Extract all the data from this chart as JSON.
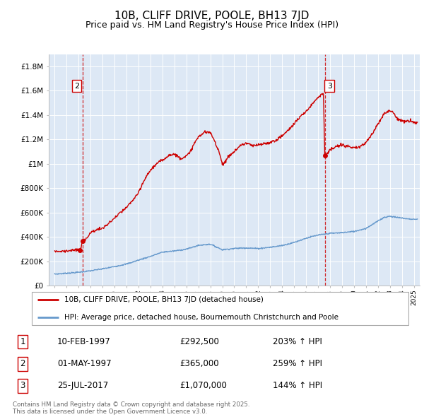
{
  "title": "10B, CLIFF DRIVE, POOLE, BH13 7JD",
  "subtitle": "Price paid vs. HM Land Registry's House Price Index (HPI)",
  "legend_line1": "10B, CLIFF DRIVE, POOLE, BH13 7JD (detached house)",
  "legend_line2": "HPI: Average price, detached house, Bournemouth Christchurch and Poole",
  "footnote": "Contains HM Land Registry data © Crown copyright and database right 2025.\nThis data is licensed under the Open Government Licence v3.0.",
  "sales": [
    {
      "num": 1,
      "date": "10-FEB-1997",
      "date_x": 1997.11,
      "price": 292500,
      "pct": "203% ↑ HPI"
    },
    {
      "num": 2,
      "date": "01-MAY-1997",
      "date_x": 1997.33,
      "price": 365000,
      "pct": "259% ↑ HPI"
    },
    {
      "num": 3,
      "date": "25-JUL-2017",
      "date_x": 2017.56,
      "price": 1070000,
      "pct": "144% ↑ HPI"
    }
  ],
  "vline2_x": 1997.33,
  "vline3_x": 2017.56,
  "ylim": [
    0,
    1900000
  ],
  "xlim": [
    1994.5,
    2025.5
  ],
  "yticks": [
    0,
    200000,
    400000,
    600000,
    800000,
    1000000,
    1200000,
    1400000,
    1600000,
    1800000
  ],
  "ytick_labels": [
    "£0",
    "£200K",
    "£400K",
    "£600K",
    "£800K",
    "£1M",
    "£1.2M",
    "£1.4M",
    "£1.6M",
    "£1.8M"
  ],
  "red_color": "#cc0000",
  "blue_color": "#6699cc",
  "plot_bg": "#dde8f5",
  "grid_color": "#ffffff",
  "hpi_key": [
    [
      1995.0,
      95000
    ],
    [
      1995.5,
      98000
    ],
    [
      1996.0,
      102000
    ],
    [
      1996.5,
      106000
    ],
    [
      1997.0,
      110000
    ],
    [
      1997.5,
      116000
    ],
    [
      1998.0,
      122000
    ],
    [
      1998.5,
      130000
    ],
    [
      1999.0,
      138000
    ],
    [
      1999.5,
      147000
    ],
    [
      2000.0,
      157000
    ],
    [
      2000.5,
      167000
    ],
    [
      2001.0,
      178000
    ],
    [
      2001.5,
      193000
    ],
    [
      2002.0,
      210000
    ],
    [
      2002.5,
      225000
    ],
    [
      2003.0,
      240000
    ],
    [
      2003.5,
      258000
    ],
    [
      2004.0,
      275000
    ],
    [
      2004.5,
      280000
    ],
    [
      2005.0,
      285000
    ],
    [
      2005.5,
      292000
    ],
    [
      2006.0,
      300000
    ],
    [
      2006.5,
      315000
    ],
    [
      2007.0,
      330000
    ],
    [
      2007.5,
      336000
    ],
    [
      2008.0,
      340000
    ],
    [
      2008.5,
      318000
    ],
    [
      2009.0,
      295000
    ],
    [
      2009.5,
      300000
    ],
    [
      2010.0,
      305000
    ],
    [
      2010.5,
      308000
    ],
    [
      2011.0,
      310000
    ],
    [
      2011.5,
      307000
    ],
    [
      2012.0,
      305000
    ],
    [
      2012.5,
      310000
    ],
    [
      2013.0,
      315000
    ],
    [
      2013.5,
      322000
    ],
    [
      2014.0,
      330000
    ],
    [
      2014.5,
      342000
    ],
    [
      2015.0,
      355000
    ],
    [
      2015.5,
      372000
    ],
    [
      2016.0,
      390000
    ],
    [
      2016.5,
      403000
    ],
    [
      2017.0,
      415000
    ],
    [
      2017.5,
      422000
    ],
    [
      2018.0,
      430000
    ],
    [
      2018.5,
      432000
    ],
    [
      2019.0,
      435000
    ],
    [
      2019.5,
      440000
    ],
    [
      2020.0,
      445000
    ],
    [
      2020.5,
      457000
    ],
    [
      2021.0,
      470000
    ],
    [
      2021.5,
      500000
    ],
    [
      2022.0,
      530000
    ],
    [
      2022.5,
      560000
    ],
    [
      2023.0,
      570000
    ],
    [
      2023.5,
      562000
    ],
    [
      2024.0,
      555000
    ],
    [
      2024.5,
      548000
    ],
    [
      2025.0,
      545000
    ]
  ],
  "red_key": [
    [
      1995.0,
      285000
    ],
    [
      1995.5,
      280000
    ],
    [
      1996.0,
      287000
    ],
    [
      1996.5,
      290000
    ],
    [
      1997.0,
      292500
    ],
    [
      1997.2,
      310000
    ],
    [
      1997.33,
      365000
    ],
    [
      1997.7,
      395000
    ],
    [
      1998.0,
      435000
    ],
    [
      1998.5,
      460000
    ],
    [
      1999.0,
      470000
    ],
    [
      1999.5,
      510000
    ],
    [
      2000.0,
      555000
    ],
    [
      2000.5,
      600000
    ],
    [
      2001.0,
      640000
    ],
    [
      2001.5,
      700000
    ],
    [
      2002.0,
      760000
    ],
    [
      2002.5,
      870000
    ],
    [
      2003.0,
      950000
    ],
    [
      2003.5,
      1000000
    ],
    [
      2004.0,
      1030000
    ],
    [
      2004.5,
      1070000
    ],
    [
      2005.0,
      1080000
    ],
    [
      2005.3,
      1060000
    ],
    [
      2005.5,
      1045000
    ],
    [
      2006.0,
      1065000
    ],
    [
      2006.3,
      1090000
    ],
    [
      2006.5,
      1140000
    ],
    [
      2007.0,
      1220000
    ],
    [
      2007.5,
      1260000
    ],
    [
      2008.0,
      1255000
    ],
    [
      2008.3,
      1200000
    ],
    [
      2008.7,
      1110000
    ],
    [
      2009.0,
      1000000
    ],
    [
      2009.3,
      1020000
    ],
    [
      2009.5,
      1060000
    ],
    [
      2010.0,
      1100000
    ],
    [
      2010.5,
      1150000
    ],
    [
      2011.0,
      1170000
    ],
    [
      2011.3,
      1160000
    ],
    [
      2011.5,
      1145000
    ],
    [
      2012.0,
      1155000
    ],
    [
      2012.5,
      1165000
    ],
    [
      2013.0,
      1175000
    ],
    [
      2013.5,
      1195000
    ],
    [
      2014.0,
      1230000
    ],
    [
      2014.5,
      1275000
    ],
    [
      2015.0,
      1330000
    ],
    [
      2015.5,
      1385000
    ],
    [
      2016.0,
      1430000
    ],
    [
      2016.5,
      1490000
    ],
    [
      2017.0,
      1550000
    ],
    [
      2017.3,
      1570000
    ],
    [
      2017.45,
      1580000
    ],
    [
      2017.56,
      1070000
    ],
    [
      2017.7,
      1080000
    ],
    [
      2018.0,
      1110000
    ],
    [
      2018.3,
      1130000
    ],
    [
      2018.5,
      1140000
    ],
    [
      2019.0,
      1155000
    ],
    [
      2019.5,
      1145000
    ],
    [
      2020.0,
      1125000
    ],
    [
      2020.5,
      1140000
    ],
    [
      2021.0,
      1175000
    ],
    [
      2021.5,
      1240000
    ],
    [
      2022.0,
      1330000
    ],
    [
      2022.5,
      1410000
    ],
    [
      2023.0,
      1440000
    ],
    [
      2023.3,
      1420000
    ],
    [
      2023.5,
      1385000
    ],
    [
      2024.0,
      1350000
    ],
    [
      2024.3,
      1345000
    ],
    [
      2024.5,
      1355000
    ],
    [
      2025.0,
      1340000
    ]
  ]
}
